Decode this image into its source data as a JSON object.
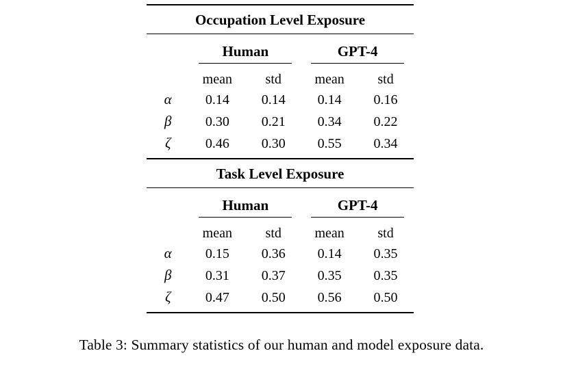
{
  "tables": [
    {
      "title": "Occupation Level Exposure",
      "groups": [
        "Human",
        "GPT-4"
      ],
      "subheaders": [
        "mean",
        "std",
        "mean",
        "std"
      ],
      "rows": [
        {
          "label": "α",
          "values": [
            "0.14",
            "0.14",
            "0.14",
            "0.16"
          ]
        },
        {
          "label": "β",
          "values": [
            "0.30",
            "0.21",
            "0.34",
            "0.22"
          ]
        },
        {
          "label": "ζ",
          "values": [
            "0.46",
            "0.30",
            "0.55",
            "0.34"
          ]
        }
      ]
    },
    {
      "title": "Task Level Exposure",
      "groups": [
        "Human",
        "GPT-4"
      ],
      "subheaders": [
        "mean",
        "std",
        "mean",
        "std"
      ],
      "rows": [
        {
          "label": "α",
          "values": [
            "0.15",
            "0.36",
            "0.14",
            "0.35"
          ]
        },
        {
          "label": "β",
          "values": [
            "0.31",
            "0.37",
            "0.35",
            "0.35"
          ]
        },
        {
          "label": "ζ",
          "values": [
            "0.47",
            "0.50",
            "0.56",
            "0.50"
          ]
        }
      ]
    }
  ],
  "caption": "Table 3: Summary statistics of our human and model exposure data."
}
